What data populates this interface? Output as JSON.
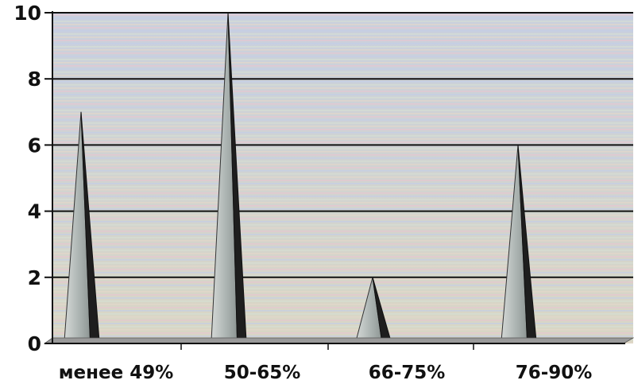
{
  "chart_data": {
    "type": "area",
    "categories": [
      "менее 49%",
      "50-65%",
      "66-75%",
      "76-90%"
    ],
    "values": [
      7,
      10,
      2,
      6
    ],
    "y_ticks": [
      "0",
      "2",
      "4",
      "6",
      "8",
      "10"
    ],
    "ylim": [
      0,
      10
    ],
    "grid": true,
    "legend": "none",
    "title": "",
    "xlabel": "",
    "ylabel": "",
    "colors": {
      "background_top": "#c9d0de",
      "background_bottom": "#d9d6c4",
      "stripe_pink": "#e7c6d0",
      "stripe_blue": "#c3cde7",
      "gridline": "#111111",
      "peak_front": "#b8bfbd",
      "peak_side": "#1e1e1e",
      "floor": "#9a9a9a"
    }
  }
}
